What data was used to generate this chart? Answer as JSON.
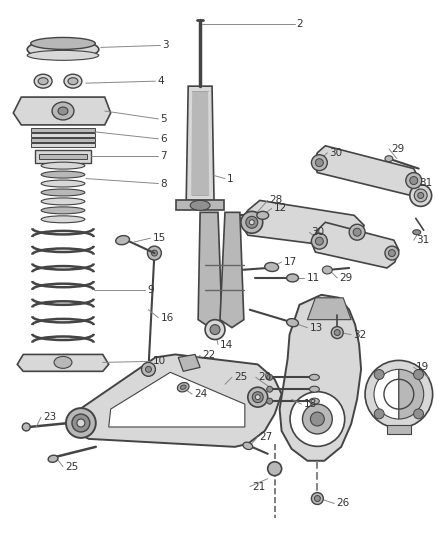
{
  "background_color": "#ffffff",
  "line_color": "#444444",
  "text_color": "#333333",
  "fig_width": 4.38,
  "fig_height": 5.33,
  "dpi": 100
}
